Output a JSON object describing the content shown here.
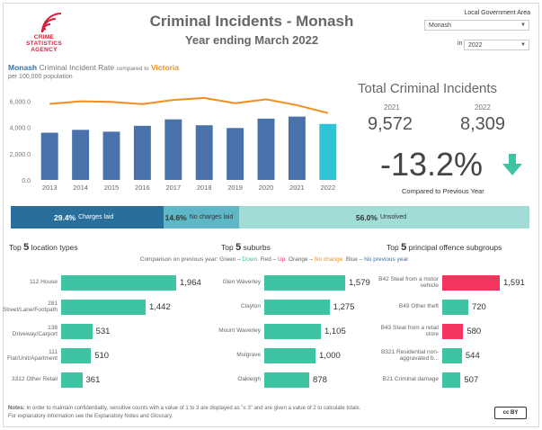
{
  "logo": {
    "line1": "CRIME",
    "line2": "STATISTICS",
    "line3": "AGENCY"
  },
  "title": "Criminal Incidents - Monash",
  "subtitle": "Year ending March 2022",
  "filters": {
    "lga_label": "Local Government Area",
    "lga_value": "Monash",
    "in_label": "in",
    "year_value": "2022"
  },
  "rate_chart": {
    "title_a": "Monash",
    "title_b": "Criminal Incident Rate",
    "title_c": "compared to",
    "title_d": "Victoria",
    "subtitle": "per 100,000 population"
  },
  "chart_data": {
    "type": "bar",
    "categories": [
      "2013",
      "2014",
      "2015",
      "2016",
      "2017",
      "2018",
      "2019",
      "2020",
      "2021",
      "2022"
    ],
    "series": [
      {
        "values": [
          3600,
          3820,
          3680,
          4130,
          4620,
          4170,
          3960,
          4680,
          4830,
          4270
        ]
      },
      {
        "values": [
          5800,
          6000,
          5950,
          5780,
          6100,
          6250,
          5850,
          6150,
          5700,
          5100
        ]
      }
    ],
    "ylim": [
      0,
      7000
    ],
    "yticks": [
      "0.0",
      "2,000.0",
      "4,000.0",
      "6,000.0"
    ],
    "colors": {
      "bar": "#4a72aa",
      "bar_highlight": "#2ec4d6",
      "line": "#f28e1c"
    }
  },
  "totals": {
    "title": "Total Criminal Incidents",
    "year_prev": "2021",
    "value_prev": "9,572",
    "year_curr": "2022",
    "value_curr": "8,309",
    "change": "-13.2%",
    "compared": "Compared to Previous Year",
    "trend_icon": "down-arrow-icon"
  },
  "status_bar": [
    {
      "pct": "29.4%",
      "label": "Charges laid",
      "share": 0.294,
      "color": "#2a6f9b",
      "text": "#ffffff"
    },
    {
      "pct": "14.6%",
      "label": "No charges laid",
      "share": 0.146,
      "color": "#5db7c6",
      "text": "#333333"
    },
    {
      "pct": "56.0%",
      "label": "Unsolved",
      "share": 0.56,
      "color": "#a2dcd6",
      "text": "#333333"
    }
  ],
  "sections": {
    "locations": {
      "pre": "Top",
      "num": "5",
      "post": "location types"
    },
    "suburbs": {
      "pre": "Top",
      "num": "5",
      "post": "suburbs"
    },
    "offences": {
      "pre": "Top",
      "num": "5",
      "post": "principal offence subgroups"
    }
  },
  "legend": {
    "lead": "Comparison on previous year: Green – ",
    "down": "Down.",
    "mid1": " Red – ",
    "up": "Up.",
    "mid2": " Orange – ",
    "nochange": "No change.",
    "mid3": " Blue – ",
    "noprev": "No previous year"
  },
  "locations": [
    {
      "label": "112 House",
      "value": "1,964",
      "n": 1964,
      "color": "#3ec4a2"
    },
    {
      "label": "281 Street/Lane/Footpath",
      "value": "1,442",
      "n": 1442,
      "color": "#3ec4a2"
    },
    {
      "label": "138 Driveway/Carport",
      "value": "531",
      "n": 531,
      "color": "#3ec4a2"
    },
    {
      "label": "111 Flat/Unit/Apartment",
      "value": "510",
      "n": 510,
      "color": "#3ec4a2"
    },
    {
      "label": "3312 Other Retail",
      "value": "361",
      "n": 361,
      "color": "#3ec4a2"
    }
  ],
  "suburbs": [
    {
      "label": "Glen Waverley",
      "value": "1,579",
      "n": 1579,
      "color": "#3ec4a2"
    },
    {
      "label": "Clayton",
      "value": "1,275",
      "n": 1275,
      "color": "#3ec4a2"
    },
    {
      "label": "Mount Waverley",
      "value": "1,105",
      "n": 1105,
      "color": "#3ec4a2"
    },
    {
      "label": "Mulgrave",
      "value": "1,000",
      "n": 1000,
      "color": "#3ec4a2"
    },
    {
      "label": "Oakleigh",
      "value": "878",
      "n": 878,
      "color": "#3ec4a2"
    }
  ],
  "offences": [
    {
      "label": "B42 Steal from a motor vehicle",
      "value": "1,591",
      "n": 1591,
      "color": "#f5345f"
    },
    {
      "label": "B49 Other theft",
      "value": "720",
      "n": 720,
      "color": "#3ec4a2"
    },
    {
      "label": "B43 Steal from a retail store",
      "value": "580",
      "n": 580,
      "color": "#f5345f"
    },
    {
      "label": "B321 Residential non-aggravated b...",
      "value": "544",
      "n": 544,
      "color": "#3ec4a2"
    },
    {
      "label": "B21 Criminal damage",
      "value": "507",
      "n": 507,
      "color": "#3ec4a2"
    }
  ],
  "notes": {
    "label": "Notes:",
    "line1": "In order to maintain confidentiality, sensitive counts with a value of 1 to 3 are displayed as \"≤ 3\" and are given a value of 2 to calculate totals.",
    "line2": "For explanatory information see the Explanatory Notes and Glossary."
  },
  "license": "cc BY"
}
